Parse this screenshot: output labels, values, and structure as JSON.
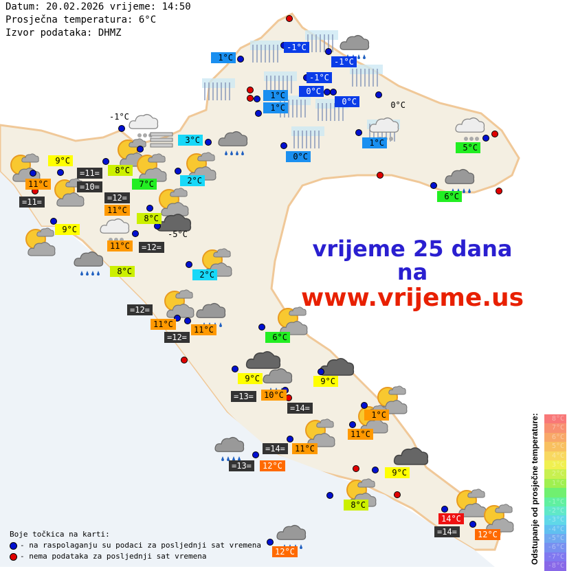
{
  "header": {
    "date_line": "Datum: 20.02.2026 vrijeme: 14:50",
    "avg_line": "Prosječna temperatura: 6°C",
    "source_line": "Izvor podataka: DHMZ"
  },
  "promo": {
    "line1": "vrijeme 25 dana",
    "line2": "na",
    "line3": "www.vrijeme.us",
    "color1": "#2a1fd0",
    "color2": "#e82000"
  },
  "colors": {
    "dark": "#333333",
    "blue": "#0a3ce8",
    "lblue": "#1a8ff0",
    "cyan": "#18d8f8",
    "green": "#22ee22",
    "lime": "#ccf000",
    "yellow": "#ffff00",
    "orange": "#ff9900",
    "orred": "#ff6a00",
    "red": "#ee1111",
    "dot_ok": "#0010d0",
    "dot_missing": "#e00000"
  },
  "labels": [
    "-1°C",
    "-1°C",
    "-1°C",
    "0°C",
    "0°C",
    "1°C",
    "1°C",
    "1°C",
    "1°C",
    "0°C",
    "3°C",
    "2°C",
    "2°C",
    "-1°C",
    "0°C",
    "-5°C",
    "5°C",
    "6°C",
    "6°C",
    "7°C",
    "8°C",
    "8°C",
    "8°C",
    "8°C",
    "9°C",
    "9°C",
    "9°C",
    "9°C",
    "9°C",
    "11°C",
    "11°C",
    "11°C",
    "11°C",
    "11°C",
    "10°C",
    "11°C",
    "11°C",
    "1°C",
    "12°C",
    "12°C",
    "12°C",
    "14°C",
    "=11=",
    "=11=",
    "=10=",
    "=12=",
    "=12=",
    "=12=",
    "=12=",
    "=13=",
    "=14=",
    "=13=",
    "=14=",
    "=14="
  ],
  "icons": [
    "sleet",
    "sleet",
    "sleet",
    "sleet",
    "sleet",
    "sleet",
    "sleet",
    "sleet",
    "sleet",
    "rain",
    "snow",
    "rain",
    "snow",
    "snow",
    "rain",
    "fog",
    "sun-cloud",
    "sun-cloud",
    "sun-cloud",
    "sun-cloud",
    "sun-cloud",
    "sun-cloud",
    "dark-cloud",
    "snow",
    "sun-cloud",
    "rain",
    "sun-cloud",
    "sun-cloud",
    "rain",
    "sun-cloud",
    "dark-cloud",
    "rain",
    "dark-cloud",
    "sun-cloud",
    "sun-cloud",
    "sun-cloud",
    "rain",
    "dark-cloud",
    "sun-cloud",
    "sun-cloud",
    "sun-cloud",
    "rain"
  ],
  "legend": {
    "title": "Boje točkica na karti:",
    "ok": "- na raspolaganju su podaci za posljednji sat vremena",
    "missing": "- nema podataka za posljednji sat vremena"
  },
  "scale": {
    "title": "Odstupanje od prosječne temperature:",
    "steps": [
      "8°C",
      "7°C",
      "6°C",
      "5°C",
      "4°C",
      "3°C",
      "2°C",
      "1°C",
      "",
      "-1°C",
      "-2°C",
      "-3°C",
      "-4°C",
      "-5°C",
      "-6°C",
      "-7°C",
      "-8°C"
    ],
    "colors": [
      "#f87878",
      "#f89070",
      "#f8a868",
      "#f8c060",
      "#f8d860",
      "#f0f050",
      "#c8f050",
      "#a0f050",
      "#70f070",
      "#60f0a0",
      "#60e8c8",
      "#60d8e8",
      "#60c0f0",
      "#70a8f0",
      "#7890f0",
      "#8078f0",
      "#8868e8"
    ]
  }
}
